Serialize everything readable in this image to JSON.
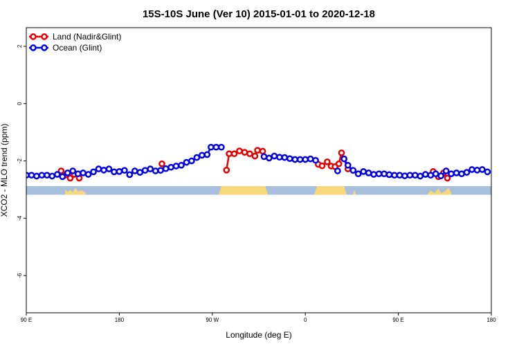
{
  "chart_data": {
    "type": "line",
    "title": "15S-10S June (Ver 10)   2015-01-01 to 2020-12-18",
    "xlabel": "Longitude (deg E)",
    "ylabel": "XCO2 - MLO trend (ppm)",
    "xlim": [
      90,
      450
    ],
    "ylim": [
      -7.3,
      2.65
    ],
    "x_ticks": [
      {
        "value": 90,
        "label": "90 E"
      },
      {
        "value": 162,
        "label": "180"
      },
      {
        "value": 234,
        "label": "90 W"
      },
      {
        "value": 306,
        "label": "0"
      },
      {
        "value": 378,
        "label": "90 E"
      },
      {
        "value": 450,
        "label": "180"
      }
    ],
    "y_ticks": [
      2,
      0,
      -2,
      -4,
      -6
    ],
    "grid": false,
    "legend_position": "top-left",
    "band": {
      "y_top": -2.88,
      "y_bottom": -3.18,
      "color": "#a7bfdd",
      "land_color": "#f8d878"
    },
    "land_segments": [
      [
        [
          120,
          2.0
        ],
        [
          122,
          1.0
        ],
        [
          124,
          1.8
        ],
        [
          126,
          0.9
        ],
        [
          128,
          2.5
        ],
        [
          130,
          1.2
        ],
        [
          133,
          1.6
        ],
        [
          136,
          0.5
        ]
      ],
      [
        [
          239,
          0.2
        ],
        [
          241,
          3.1
        ],
        [
          261,
          3.1
        ],
        [
          275,
          3.1
        ],
        [
          277,
          0.2
        ]
      ],
      [
        [
          313,
          0.2
        ],
        [
          315,
          3.1
        ],
        [
          330,
          3.1
        ],
        [
          336,
          3.1
        ],
        [
          338,
          0.2
        ]
      ],
      [
        [
          331,
          0.3
        ],
        [
          332,
          2.5
        ],
        [
          333,
          0.3
        ]
      ],
      [
        [
          343,
          0.3
        ],
        [
          344,
          1.8
        ],
        [
          345,
          0.3
        ]
      ],
      [
        [
          401,
          0.4
        ],
        [
          403,
          1.5
        ],
        [
          406,
          0.6
        ],
        [
          409,
          2.3
        ],
        [
          411,
          0.6
        ],
        [
          414,
          1.2
        ],
        [
          417,
          2.6
        ],
        [
          419,
          0.5
        ]
      ]
    ],
    "series": [
      {
        "name": "Land (Nadir&Glint)",
        "color": "#e60000",
        "segments": [
          [
            [
              117,
              -2.35
            ],
            [
              120,
              -2.5
            ],
            [
              124,
              -2.6
            ],
            [
              127,
              -2.47
            ],
            [
              131,
              -2.6
            ]
          ],
          [
            [
              195,
              -2.1
            ]
          ],
          [
            [
              245,
              -2.32
            ],
            [
              247,
              -1.75
            ],
            [
              251,
              -1.75
            ],
            [
              255,
              -1.65
            ],
            [
              259,
              -1.7
            ],
            [
              263,
              -1.75
            ],
            [
              267,
              -1.83
            ],
            [
              269,
              -1.63
            ],
            [
              273,
              -1.66
            ]
          ],
          [
            [
              316,
              -2.12
            ],
            [
              319,
              -2.17
            ],
            [
              323,
              -2.03
            ],
            [
              326,
              -2.18
            ],
            [
              329,
              -2.2
            ],
            [
              332,
              -2.1
            ],
            [
              334,
              -1.72
            ],
            [
              339,
              -2.28
            ]
          ],
          [
            [
              405,
              -2.37
            ],
            [
              409,
              -2.55
            ],
            [
              413,
              -2.42
            ],
            [
              416,
              -2.6
            ]
          ]
        ]
      },
      {
        "name": "Ocean (Glint)",
        "color": "#0000e6",
        "segments": [
          [
            [
              90,
              -2.5
            ],
            [
              94,
              -2.5
            ],
            [
              98,
              -2.53
            ],
            [
              102,
              -2.5
            ],
            [
              106,
              -2.5
            ],
            [
              110,
              -2.53
            ],
            [
              114,
              -2.47
            ],
            [
              118,
              -2.55
            ],
            [
              122,
              -2.42
            ],
            [
              126,
              -2.35
            ],
            [
              130,
              -2.45
            ],
            [
              134,
              -2.42
            ],
            [
              138,
              -2.47
            ],
            [
              142,
              -2.38
            ],
            [
              146,
              -2.28
            ],
            [
              150,
              -2.32
            ],
            [
              154,
              -2.28
            ],
            [
              158,
              -2.38
            ],
            [
              162,
              -2.37
            ],
            [
              166,
              -2.33
            ],
            [
              170,
              -2.48
            ],
            [
              174,
              -2.35
            ],
            [
              178,
              -2.4
            ],
            [
              182,
              -2.33
            ],
            [
              186,
              -2.28
            ],
            [
              190,
              -2.35
            ],
            [
              194,
              -2.33
            ],
            [
              198,
              -2.27
            ],
            [
              202,
              -2.22
            ],
            [
              206,
              -2.18
            ],
            [
              210,
              -2.15
            ],
            [
              214,
              -2.05
            ],
            [
              218,
              -2.0
            ],
            [
              222,
              -1.88
            ],
            [
              226,
              -1.8
            ],
            [
              230,
              -1.78
            ],
            [
              233,
              -1.52
            ],
            [
              237,
              -1.52
            ],
            [
              241,
              -1.52
            ]
          ],
          [
            [
              274,
              -1.85
            ],
            [
              278,
              -1.9
            ],
            [
              282,
              -1.83
            ],
            [
              286,
              -1.87
            ],
            [
              290,
              -1.88
            ],
            [
              294,
              -1.92
            ],
            [
              298,
              -1.95
            ],
            [
              302,
              -1.95
            ],
            [
              306,
              -1.95
            ],
            [
              310,
              -1.93
            ],
            [
              314,
              -1.98
            ]
          ],
          [
            [
              331,
              -2.35
            ]
          ],
          [
            [
              336,
              -1.93
            ],
            [
              339,
              -2.15
            ],
            [
              343,
              -2.33
            ],
            [
              347,
              -2.45
            ],
            [
              351,
              -2.37
            ],
            [
              355,
              -2.42
            ],
            [
              359,
              -2.47
            ],
            [
              363,
              -2.45
            ],
            [
              367,
              -2.45
            ],
            [
              371,
              -2.48
            ],
            [
              375,
              -2.5
            ],
            [
              379,
              -2.5
            ],
            [
              383,
              -2.52
            ],
            [
              387,
              -2.5
            ],
            [
              391,
              -2.5
            ],
            [
              395,
              -2.53
            ],
            [
              399,
              -2.47
            ],
            [
              403,
              -2.5
            ],
            [
              407,
              -2.45
            ],
            [
              411,
              -2.52
            ],
            [
              415,
              -2.35
            ],
            [
              419,
              -2.45
            ],
            [
              423,
              -2.42
            ],
            [
              427,
              -2.45
            ],
            [
              431,
              -2.4
            ],
            [
              435,
              -2.3
            ],
            [
              439,
              -2.32
            ],
            [
              443,
              -2.3
            ],
            [
              447,
              -2.38
            ]
          ]
        ]
      }
    ]
  }
}
